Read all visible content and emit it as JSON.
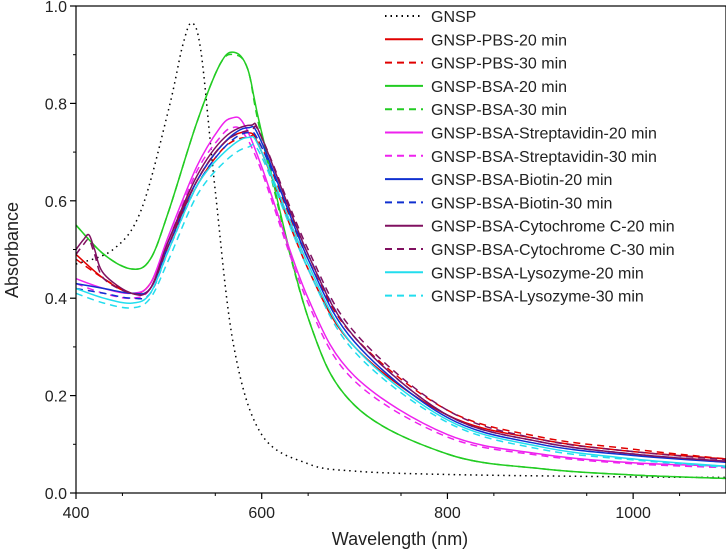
{
  "chart_data": {
    "type": "line",
    "title": "",
    "xlabel": "Wavelength (nm)",
    "ylabel": "Absorbance",
    "xlim": [
      400,
      1100
    ],
    "ylim": [
      0,
      1.0
    ],
    "xticks": [
      400,
      600,
      800,
      1000
    ],
    "xtick_labels": [
      "400",
      "600",
      "800",
      "1000"
    ],
    "yticks": [
      0,
      0.2,
      0.4,
      0.6,
      0.8,
      1.0
    ],
    "ytick_labels": [
      "0.0",
      "0.2",
      "0.4",
      "0.6",
      "0.8",
      "1.0"
    ],
    "grid": false,
    "legend_position": "top-right",
    "series": [
      {
        "name": "GNSP",
        "color": "#000000",
        "dash": "dot",
        "x": [
          400,
          440,
          470,
          500,
          515,
          525,
          535,
          550,
          570,
          600,
          650,
          700,
          800,
          1000,
          1100
        ],
        "y": [
          0.47,
          0.5,
          0.58,
          0.79,
          0.92,
          0.965,
          0.9,
          0.62,
          0.3,
          0.12,
          0.06,
          0.045,
          0.038,
          0.033,
          0.032
        ]
      },
      {
        "name": "GNSP-PBS-20 min",
        "color": "#e00000",
        "dash": "solid",
        "x": [
          400,
          430,
          460,
          480,
          500,
          530,
          560,
          585,
          600,
          650,
          700,
          800,
          900,
          1000,
          1100
        ],
        "y": [
          0.49,
          0.44,
          0.41,
          0.43,
          0.52,
          0.64,
          0.72,
          0.74,
          0.7,
          0.46,
          0.3,
          0.16,
          0.11,
          0.085,
          0.07
        ]
      },
      {
        "name": "GNSP-PBS-30 min",
        "color": "#e00000",
        "dash": "dash",
        "x": [
          400,
          430,
          460,
          480,
          500,
          530,
          560,
          585,
          600,
          650,
          700,
          800,
          900,
          1000,
          1100
        ],
        "y": [
          0.48,
          0.44,
          0.41,
          0.42,
          0.51,
          0.63,
          0.71,
          0.73,
          0.71,
          0.48,
          0.32,
          0.17,
          0.115,
          0.09,
          0.07
        ]
      },
      {
        "name": "GNSP-BSA-20 min",
        "color": "#22cc22",
        "dash": "solid",
        "x": [
          400,
          430,
          460,
          480,
          500,
          530,
          555,
          570,
          585,
          600,
          650,
          700,
          800,
          900,
          1000,
          1100
        ],
        "y": [
          0.55,
          0.49,
          0.46,
          0.48,
          0.58,
          0.76,
          0.88,
          0.905,
          0.87,
          0.74,
          0.36,
          0.18,
          0.08,
          0.05,
          0.037,
          0.03
        ]
      },
      {
        "name": "GNSP-BSA-30 min",
        "color": "#22cc22",
        "dash": "dash",
        "x": [
          400,
          430,
          460,
          480,
          500,
          530,
          555,
          570,
          585,
          600,
          650,
          700,
          800,
          900,
          1000,
          1100
        ],
        "y": [
          0.55,
          0.49,
          0.46,
          0.48,
          0.58,
          0.76,
          0.88,
          0.9,
          0.87,
          0.73,
          0.36,
          0.18,
          0.08,
          0.05,
          0.037,
          0.03
        ]
      },
      {
        "name": "GNSP-BSA-Streptavidin-20 min",
        "color": "#ee22ee",
        "dash": "solid",
        "x": [
          400,
          430,
          460,
          480,
          500,
          530,
          555,
          568,
          580,
          600,
          650,
          700,
          800,
          900,
          1000,
          1100
        ],
        "y": [
          0.44,
          0.42,
          0.41,
          0.43,
          0.53,
          0.67,
          0.75,
          0.77,
          0.76,
          0.67,
          0.4,
          0.24,
          0.12,
          0.08,
          0.062,
          0.055
        ]
      },
      {
        "name": "GNSP-BSA-Streptavidin-30 min",
        "color": "#ee22ee",
        "dash": "dash",
        "x": [
          400,
          430,
          460,
          480,
          500,
          530,
          555,
          568,
          580,
          600,
          650,
          700,
          800,
          900,
          1000,
          1100
        ],
        "y": [
          0.43,
          0.41,
          0.4,
          0.42,
          0.52,
          0.66,
          0.73,
          0.75,
          0.74,
          0.66,
          0.39,
          0.23,
          0.115,
          0.077,
          0.06,
          0.052
        ]
      },
      {
        "name": "GNSP-BSA-Biotin-20 min",
        "color": "#1030d0",
        "dash": "solid",
        "x": [
          400,
          430,
          460,
          480,
          500,
          530,
          560,
          585,
          600,
          650,
          700,
          800,
          900,
          1000,
          1100
        ],
        "y": [
          0.43,
          0.42,
          0.41,
          0.42,
          0.51,
          0.64,
          0.72,
          0.75,
          0.72,
          0.48,
          0.31,
          0.155,
          0.1,
          0.077,
          0.063
        ]
      },
      {
        "name": "GNSP-BSA-Biotin-30 min",
        "color": "#1030d0",
        "dash": "dash",
        "x": [
          400,
          430,
          460,
          480,
          500,
          530,
          560,
          585,
          600,
          650,
          700,
          800,
          900,
          1000,
          1100
        ],
        "y": [
          0.42,
          0.41,
          0.4,
          0.41,
          0.5,
          0.63,
          0.71,
          0.74,
          0.71,
          0.49,
          0.32,
          0.16,
          0.105,
          0.08,
          0.065
        ]
      },
      {
        "name": "GNSP-BSA-Cytochrome C-20 min",
        "color": "#801060",
        "dash": "solid",
        "x": [
          400,
          408,
          414,
          420,
          430,
          460,
          480,
          500,
          530,
          560,
          588,
          600,
          650,
          700,
          800,
          900,
          1000,
          1100
        ],
        "y": [
          0.5,
          0.52,
          0.53,
          0.5,
          0.45,
          0.41,
          0.42,
          0.52,
          0.65,
          0.73,
          0.755,
          0.73,
          0.49,
          0.32,
          0.16,
          0.105,
          0.08,
          0.065
        ]
      },
      {
        "name": "GNSP-BSA-Cytochrome C-30 min",
        "color": "#801060",
        "dash": "dash",
        "x": [
          400,
          408,
          414,
          420,
          430,
          460,
          480,
          500,
          530,
          560,
          588,
          600,
          650,
          700,
          800,
          900,
          1000,
          1100
        ],
        "y": [
          0.49,
          0.51,
          0.52,
          0.49,
          0.44,
          0.41,
          0.42,
          0.51,
          0.64,
          0.72,
          0.745,
          0.73,
          0.5,
          0.33,
          0.17,
          0.11,
          0.085,
          0.068
        ]
      },
      {
        "name": "GNSP-BSA-Lysozyme-20 min",
        "color": "#22ddee",
        "dash": "solid",
        "x": [
          400,
          430,
          460,
          480,
          500,
          530,
          560,
          585,
          600,
          650,
          700,
          800,
          900,
          1000,
          1100
        ],
        "y": [
          0.42,
          0.4,
          0.39,
          0.41,
          0.5,
          0.63,
          0.7,
          0.73,
          0.7,
          0.47,
          0.3,
          0.15,
          0.095,
          0.07,
          0.055
        ]
      },
      {
        "name": "GNSP-BSA-Lysozyme-30 min",
        "color": "#22ddee",
        "dash": "dash",
        "x": [
          400,
          430,
          460,
          480,
          500,
          530,
          560,
          585,
          600,
          650,
          700,
          800,
          900,
          1000,
          1100
        ],
        "y": [
          0.41,
          0.39,
          0.38,
          0.4,
          0.48,
          0.61,
          0.68,
          0.71,
          0.69,
          0.46,
          0.29,
          0.145,
          0.09,
          0.068,
          0.053
        ]
      }
    ]
  }
}
